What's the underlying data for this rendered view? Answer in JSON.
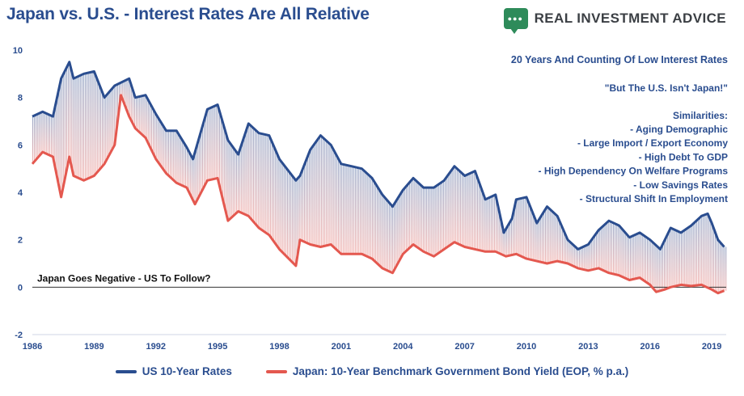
{
  "header": {
    "title": "Japan vs. U.S. - Interest Rates Are All Relative",
    "brand_icon": "chat-bubble-icon",
    "brand_name": "REAL INVESTMENT ADVICE"
  },
  "colors": {
    "us": "#2a4d8f",
    "japan": "#e4584f",
    "text": "#2a4d8f",
    "zero_line": "#333333",
    "axis": "#cfd6e4"
  },
  "chart_data": {
    "type": "line",
    "title": "Japan vs. U.S. - Interest Rates Are All Relative",
    "xlabel": "",
    "ylabel": "",
    "xlim": [
      1986,
      2019.7
    ],
    "ylim": [
      -2,
      10
    ],
    "x_ticks": [
      1986,
      1989,
      1992,
      1995,
      1998,
      2001,
      2004,
      2007,
      2010,
      2013,
      2016,
      2019
    ],
    "y_ticks": [
      -2,
      0,
      2,
      4,
      6,
      8,
      10
    ],
    "grid": false,
    "legend_position": "bottom",
    "series": [
      {
        "name": "US 10-Year Rates",
        "x": [
          1986.0,
          1986.5,
          1987.0,
          1987.4,
          1987.8,
          1988.0,
          1988.5,
          1989.0,
          1989.5,
          1990.0,
          1990.7,
          1991.0,
          1991.5,
          1992.0,
          1992.5,
          1993.0,
          1993.5,
          1993.8,
          1994.5,
          1995.0,
          1995.5,
          1996.0,
          1996.5,
          1997.0,
          1997.5,
          1998.0,
          1998.8,
          1999.0,
          1999.5,
          2000.0,
          2000.5,
          2001.0,
          2001.5,
          2002.0,
          2002.5,
          2003.0,
          2003.5,
          2004.0,
          2004.5,
          2005.0,
          2005.5,
          2006.0,
          2006.5,
          2007.0,
          2007.5,
          2008.0,
          2008.5,
          2008.9,
          2009.3,
          2009.5,
          2010.0,
          2010.5,
          2011.0,
          2011.5,
          2012.0,
          2012.5,
          2013.0,
          2013.5,
          2014.0,
          2014.5,
          2015.0,
          2015.5,
          2016.0,
          2016.5,
          2017.0,
          2017.5,
          2018.0,
          2018.5,
          2018.8,
          2019.0,
          2019.3,
          2019.6
        ],
        "values": [
          7.2,
          7.4,
          7.2,
          8.8,
          9.5,
          8.8,
          9.0,
          9.1,
          8.0,
          8.5,
          8.8,
          8.0,
          8.1,
          7.3,
          6.6,
          6.6,
          5.9,
          5.4,
          7.5,
          7.7,
          6.2,
          5.6,
          6.9,
          6.5,
          6.4,
          5.4,
          4.5,
          4.7,
          5.8,
          6.4,
          6.0,
          5.2,
          5.1,
          5.0,
          4.6,
          3.9,
          3.4,
          4.1,
          4.6,
          4.2,
          4.2,
          4.5,
          5.1,
          4.7,
          4.9,
          3.7,
          3.9,
          2.3,
          2.9,
          3.7,
          3.8,
          2.7,
          3.4,
          3.0,
          2.0,
          1.6,
          1.8,
          2.4,
          2.8,
          2.6,
          2.1,
          2.3,
          2.0,
          1.6,
          2.5,
          2.3,
          2.6,
          3.0,
          3.1,
          2.7,
          2.0,
          1.7
        ]
      },
      {
        "name": "Japan: 10-Year Benchmark Government Bond Yield (EOP, % p.a.)",
        "x": [
          1986.0,
          1986.5,
          1987.0,
          1987.4,
          1987.8,
          1988.0,
          1988.5,
          1989.0,
          1989.5,
          1990.0,
          1990.3,
          1990.7,
          1991.0,
          1991.5,
          1992.0,
          1992.5,
          1993.0,
          1993.5,
          1993.9,
          1994.5,
          1995.0,
          1995.5,
          1996.0,
          1996.5,
          1997.0,
          1997.5,
          1998.0,
          1998.8,
          1999.0,
          1999.5,
          2000.0,
          2000.5,
          2001.0,
          2001.5,
          2002.0,
          2002.5,
          2003.0,
          2003.5,
          2004.0,
          2004.5,
          2005.0,
          2005.5,
          2006.0,
          2006.5,
          2007.0,
          2007.5,
          2008.0,
          2008.5,
          2009.0,
          2009.5,
          2010.0,
          2010.5,
          2011.0,
          2011.5,
          2012.0,
          2012.5,
          2013.0,
          2013.5,
          2014.0,
          2014.5,
          2015.0,
          2015.5,
          2016.0,
          2016.3,
          2016.7,
          2017.0,
          2017.5,
          2018.0,
          2018.5,
          2019.0,
          2019.3,
          2019.6
        ],
        "values": [
          5.2,
          5.7,
          5.5,
          3.8,
          5.5,
          4.7,
          4.5,
          4.7,
          5.2,
          6.0,
          8.1,
          7.2,
          6.7,
          6.3,
          5.4,
          4.8,
          4.4,
          4.2,
          3.5,
          4.5,
          4.6,
          2.8,
          3.2,
          3.0,
          2.5,
          2.2,
          1.6,
          0.9,
          2.0,
          1.8,
          1.7,
          1.8,
          1.4,
          1.4,
          1.4,
          1.2,
          0.8,
          0.6,
          1.4,
          1.8,
          1.5,
          1.3,
          1.6,
          1.9,
          1.7,
          1.6,
          1.5,
          1.5,
          1.3,
          1.4,
          1.2,
          1.1,
          1.0,
          1.1,
          1.0,
          0.8,
          0.7,
          0.8,
          0.6,
          0.5,
          0.3,
          0.4,
          0.1,
          -0.2,
          -0.1,
          0.0,
          0.1,
          0.05,
          0.1,
          -0.1,
          -0.25,
          -0.15
        ]
      }
    ],
    "annotations": {
      "headline": "20 Years And Counting Of Low Interest Rates",
      "quote": "\"But The U.S. Isn't Japan!\"",
      "similarities_title": "Similarities:",
      "similarities": [
        "- Aging Demographic",
        "- Large Import /  Export Economy",
        "- High Debt To GDP",
        "- High Dependency On Welfare Programs",
        "- Low Savings Rates",
        "- Structural Shift In Employment"
      ],
      "zero_note": "Japan Goes Negative - US To Follow?"
    }
  }
}
